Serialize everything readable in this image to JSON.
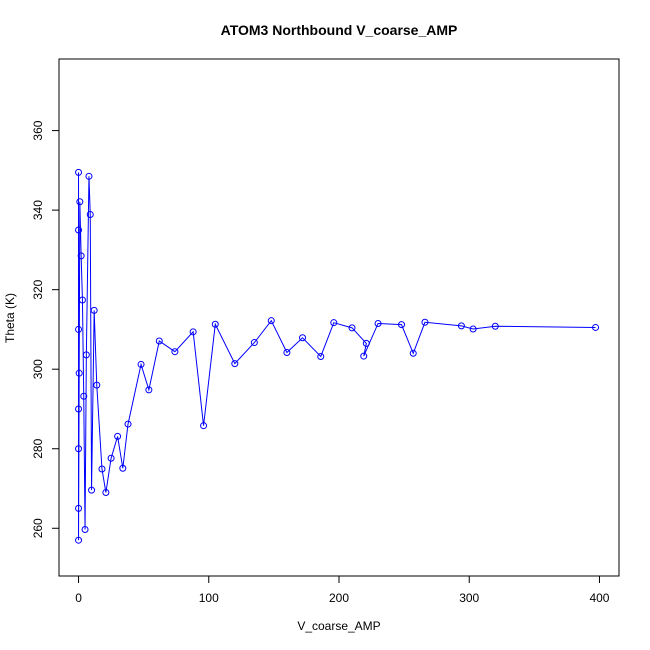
{
  "chart_data": {
    "type": "scatter",
    "title": "ATOM3 Northbound V_coarse_AMP",
    "xlabel": "V_coarse_AMP",
    "ylabel": "Theta (K)",
    "xlim": [
      -15,
      415
    ],
    "ylim": [
      248,
      378
    ],
    "xticks": [
      "0",
      "100",
      "200",
      "300",
      "400"
    ],
    "yticks": [
      "260",
      "280",
      "300",
      "320",
      "340",
      "360"
    ],
    "grid": false,
    "legend": "none",
    "point_style": "open-circle-connected",
    "color": "#0000ff",
    "series": [
      {
        "values": [
          [
            397,
            310.5
          ],
          [
            320,
            310.8
          ],
          [
            303,
            310.1
          ],
          [
            294,
            310.9
          ],
          [
            266,
            311.8
          ],
          [
            257,
            304.0
          ],
          [
            248,
            311.2
          ],
          [
            230,
            311.5
          ],
          [
            219,
            303.3
          ],
          [
            221,
            306.5
          ],
          [
            210,
            310.4
          ],
          [
            196,
            311.7
          ],
          [
            186,
            303.2
          ],
          [
            172,
            307.9
          ],
          [
            160,
            304.2
          ],
          [
            148,
            312.2
          ],
          [
            135,
            306.7
          ],
          [
            120,
            301.4
          ],
          [
            105,
            311.3
          ],
          [
            96,
            285.8
          ],
          [
            88,
            309.4
          ],
          [
            74,
            304.4
          ],
          [
            62,
            307.1
          ],
          [
            54,
            294.8
          ],
          [
            48,
            301.2
          ],
          [
            38,
            286.2
          ],
          [
            34,
            275.1
          ],
          [
            30,
            283.1
          ],
          [
            25,
            277.6
          ],
          [
            21,
            269.0
          ],
          [
            18,
            274.9
          ],
          [
            14,
            296.0
          ],
          [
            12,
            314.8
          ],
          [
            10,
            269.6
          ],
          [
            9,
            338.9
          ],
          [
            8,
            348.5
          ],
          [
            6,
            303.6
          ],
          [
            5,
            259.7
          ],
          [
            4,
            293.2
          ],
          [
            3,
            317.4
          ],
          [
            2,
            328.5
          ],
          [
            1,
            342.1
          ],
          [
            0.5,
            299.0
          ],
          [
            0,
            257.0
          ],
          [
            0,
            280.0
          ],
          [
            0,
            349.5
          ],
          [
            0,
            310.0
          ],
          [
            0,
            265.0
          ],
          [
            0,
            290.0
          ],
          [
            0,
            335.0
          ]
        ]
      }
    ]
  }
}
